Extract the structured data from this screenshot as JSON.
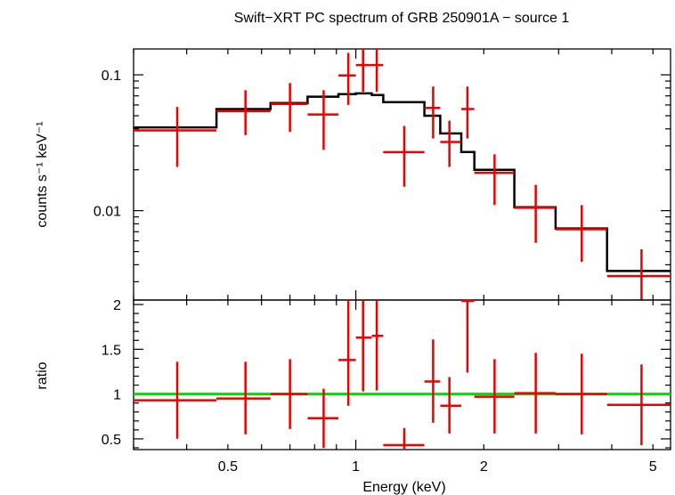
{
  "title": "Swift−XRT PC spectrum of GRB 250901A − source 1",
  "colors": {
    "data": "#ee0000",
    "model": "#000000",
    "unity": "#00dd00",
    "frame": "#000000"
  },
  "chart_data": [
    {
      "type": "scatter",
      "panel": "top",
      "xlabel": "",
      "ylabel": "counts s⁻¹ keV⁻¹",
      "xscale": "log",
      "yscale": "log",
      "xlim": [
        0.3,
        5.5
      ],
      "ylim": [
        0.0022,
        0.155
      ],
      "yticks": [
        {
          "value": 0.1,
          "label": "0.1"
        },
        {
          "value": 0.01,
          "label": "0.01"
        }
      ],
      "data": [
        {
          "x": 0.38,
          "xlo": 0.3,
          "xhi": 0.47,
          "y": 0.039,
          "ylo": 0.021,
          "yhi": 0.058
        },
        {
          "x": 0.55,
          "xlo": 0.47,
          "xhi": 0.63,
          "y": 0.054,
          "ylo": 0.036,
          "yhi": 0.077
        },
        {
          "x": 0.7,
          "xlo": 0.63,
          "xhi": 0.77,
          "y": 0.061,
          "ylo": 0.038,
          "yhi": 0.087
        },
        {
          "x": 0.84,
          "xlo": 0.77,
          "xhi": 0.91,
          "y": 0.051,
          "ylo": 0.028,
          "yhi": 0.077
        },
        {
          "x": 0.96,
          "xlo": 0.91,
          "xhi": 1.0,
          "y": 0.099,
          "ylo": 0.06,
          "yhi": 0.145
        },
        {
          "x": 1.04,
          "xlo": 1.0,
          "xhi": 1.09,
          "y": 0.118,
          "ylo": 0.075,
          "yhi": 0.155
        },
        {
          "x": 1.12,
          "xlo": 1.09,
          "xhi": 1.16,
          "y": 0.118,
          "ylo": 0.075,
          "yhi": 0.155
        },
        {
          "x": 1.3,
          "xlo": 1.16,
          "xhi": 1.45,
          "y": 0.027,
          "ylo": 0.015,
          "yhi": 0.042
        },
        {
          "x": 1.52,
          "xlo": 1.45,
          "xhi": 1.58,
          "y": 0.057,
          "ylo": 0.034,
          "yhi": 0.082
        },
        {
          "x": 1.66,
          "xlo": 1.58,
          "xhi": 1.77,
          "y": 0.032,
          "ylo": 0.021,
          "yhi": 0.046
        },
        {
          "x": 1.83,
          "xlo": 1.77,
          "xhi": 1.9,
          "y": 0.056,
          "ylo": 0.034,
          "yhi": 0.082
        },
        {
          "x": 2.12,
          "xlo": 1.9,
          "xhi": 2.36,
          "y": 0.019,
          "ylo": 0.011,
          "yhi": 0.026
        },
        {
          "x": 2.65,
          "xlo": 2.36,
          "xhi": 2.95,
          "y": 0.0105,
          "ylo": 0.0058,
          "yhi": 0.0155
        },
        {
          "x": 3.4,
          "xlo": 2.95,
          "xhi": 3.9,
          "y": 0.0073,
          "ylo": 0.0042,
          "yhi": 0.011
        },
        {
          "x": 4.7,
          "xlo": 3.9,
          "xhi": 5.5,
          "y": 0.0033,
          "ylo": 0.0022,
          "yhi": 0.0052
        }
      ],
      "model": [
        {
          "xlo": 0.3,
          "xhi": 0.47,
          "y": 0.041
        },
        {
          "xlo": 0.47,
          "xhi": 0.63,
          "y": 0.056
        },
        {
          "xlo": 0.63,
          "xhi": 0.77,
          "y": 0.062
        },
        {
          "xlo": 0.77,
          "xhi": 0.91,
          "y": 0.069
        },
        {
          "xlo": 0.91,
          "xhi": 1.0,
          "y": 0.072
        },
        {
          "xlo": 1.0,
          "xhi": 1.09,
          "y": 0.073
        },
        {
          "xlo": 1.09,
          "xhi": 1.16,
          "y": 0.071
        },
        {
          "xlo": 1.16,
          "xhi": 1.45,
          "y": 0.063
        },
        {
          "xlo": 1.45,
          "xhi": 1.58,
          "y": 0.05
        },
        {
          "xlo": 1.58,
          "xhi": 1.77,
          "y": 0.037
        },
        {
          "xlo": 1.77,
          "xhi": 1.9,
          "y": 0.027
        },
        {
          "xlo": 1.9,
          "xhi": 2.36,
          "y": 0.02
        },
        {
          "xlo": 2.36,
          "xhi": 2.95,
          "y": 0.0106
        },
        {
          "xlo": 2.95,
          "xhi": 3.9,
          "y": 0.0074
        },
        {
          "xlo": 3.9,
          "xhi": 5.5,
          "y": 0.0036
        }
      ]
    },
    {
      "type": "scatter",
      "panel": "bottom",
      "xlabel": "Energy (keV)",
      "ylabel": "ratio",
      "xscale": "log",
      "yscale": "linear",
      "xlim": [
        0.3,
        5.5
      ],
      "ylim": [
        0.38,
        2.05
      ],
      "yticks": [
        {
          "value": 0.5,
          "label": "0.5"
        },
        {
          "value": 1,
          "label": "1"
        },
        {
          "value": 1.5,
          "label": "1.5"
        },
        {
          "value": 2,
          "label": "2"
        }
      ],
      "xticks": [
        {
          "value": 0.5,
          "label": "0.5"
        },
        {
          "value": 1,
          "label": "1"
        },
        {
          "value": 2,
          "label": "2"
        },
        {
          "value": 5,
          "label": "5"
        }
      ],
      "reference_line": 1,
      "data": [
        {
          "x": 0.38,
          "xlo": 0.3,
          "xhi": 0.47,
          "y": 0.93,
          "ylo": 0.5,
          "yhi": 1.36
        },
        {
          "x": 0.55,
          "xlo": 0.47,
          "xhi": 0.63,
          "y": 0.95,
          "ylo": 0.55,
          "yhi": 1.36
        },
        {
          "x": 0.7,
          "xlo": 0.63,
          "xhi": 0.77,
          "y": 1.0,
          "ylo": 0.61,
          "yhi": 1.39
        },
        {
          "x": 0.84,
          "xlo": 0.77,
          "xhi": 0.91,
          "y": 0.73,
          "ylo": 0.4,
          "yhi": 1.06
        },
        {
          "x": 0.96,
          "xlo": 0.91,
          "xhi": 1.0,
          "y": 1.38,
          "ylo": 0.87,
          "yhi": 2.05
        },
        {
          "x": 1.04,
          "xlo": 1.0,
          "xhi": 1.09,
          "y": 1.63,
          "ylo": 1.03,
          "yhi": 2.05
        },
        {
          "x": 1.12,
          "xlo": 1.09,
          "xhi": 1.16,
          "y": 1.65,
          "ylo": 1.04,
          "yhi": 2.05
        },
        {
          "x": 1.3,
          "xlo": 1.16,
          "xhi": 1.45,
          "y": 0.43,
          "ylo": 0.38,
          "yhi": 0.62
        },
        {
          "x": 1.52,
          "xlo": 1.45,
          "xhi": 1.58,
          "y": 1.14,
          "ylo": 0.68,
          "yhi": 1.61
        },
        {
          "x": 1.66,
          "xlo": 1.58,
          "xhi": 1.77,
          "y": 0.87,
          "ylo": 0.56,
          "yhi": 1.19
        },
        {
          "x": 1.83,
          "xlo": 1.77,
          "xhi": 1.9,
          "y": 2.04,
          "ylo": 1.24,
          "yhi": 2.05
        },
        {
          "x": 2.12,
          "xlo": 1.9,
          "xhi": 2.36,
          "y": 0.97,
          "ylo": 0.56,
          "yhi": 1.39
        },
        {
          "x": 2.65,
          "xlo": 2.36,
          "xhi": 2.95,
          "y": 1.01,
          "ylo": 0.56,
          "yhi": 1.46
        },
        {
          "x": 3.4,
          "xlo": 2.95,
          "xhi": 3.9,
          "y": 1.0,
          "ylo": 0.55,
          "yhi": 1.45
        },
        {
          "x": 4.7,
          "xlo": 3.9,
          "xhi": 5.5,
          "y": 0.88,
          "ylo": 0.43,
          "yhi": 1.33
        }
      ]
    }
  ]
}
